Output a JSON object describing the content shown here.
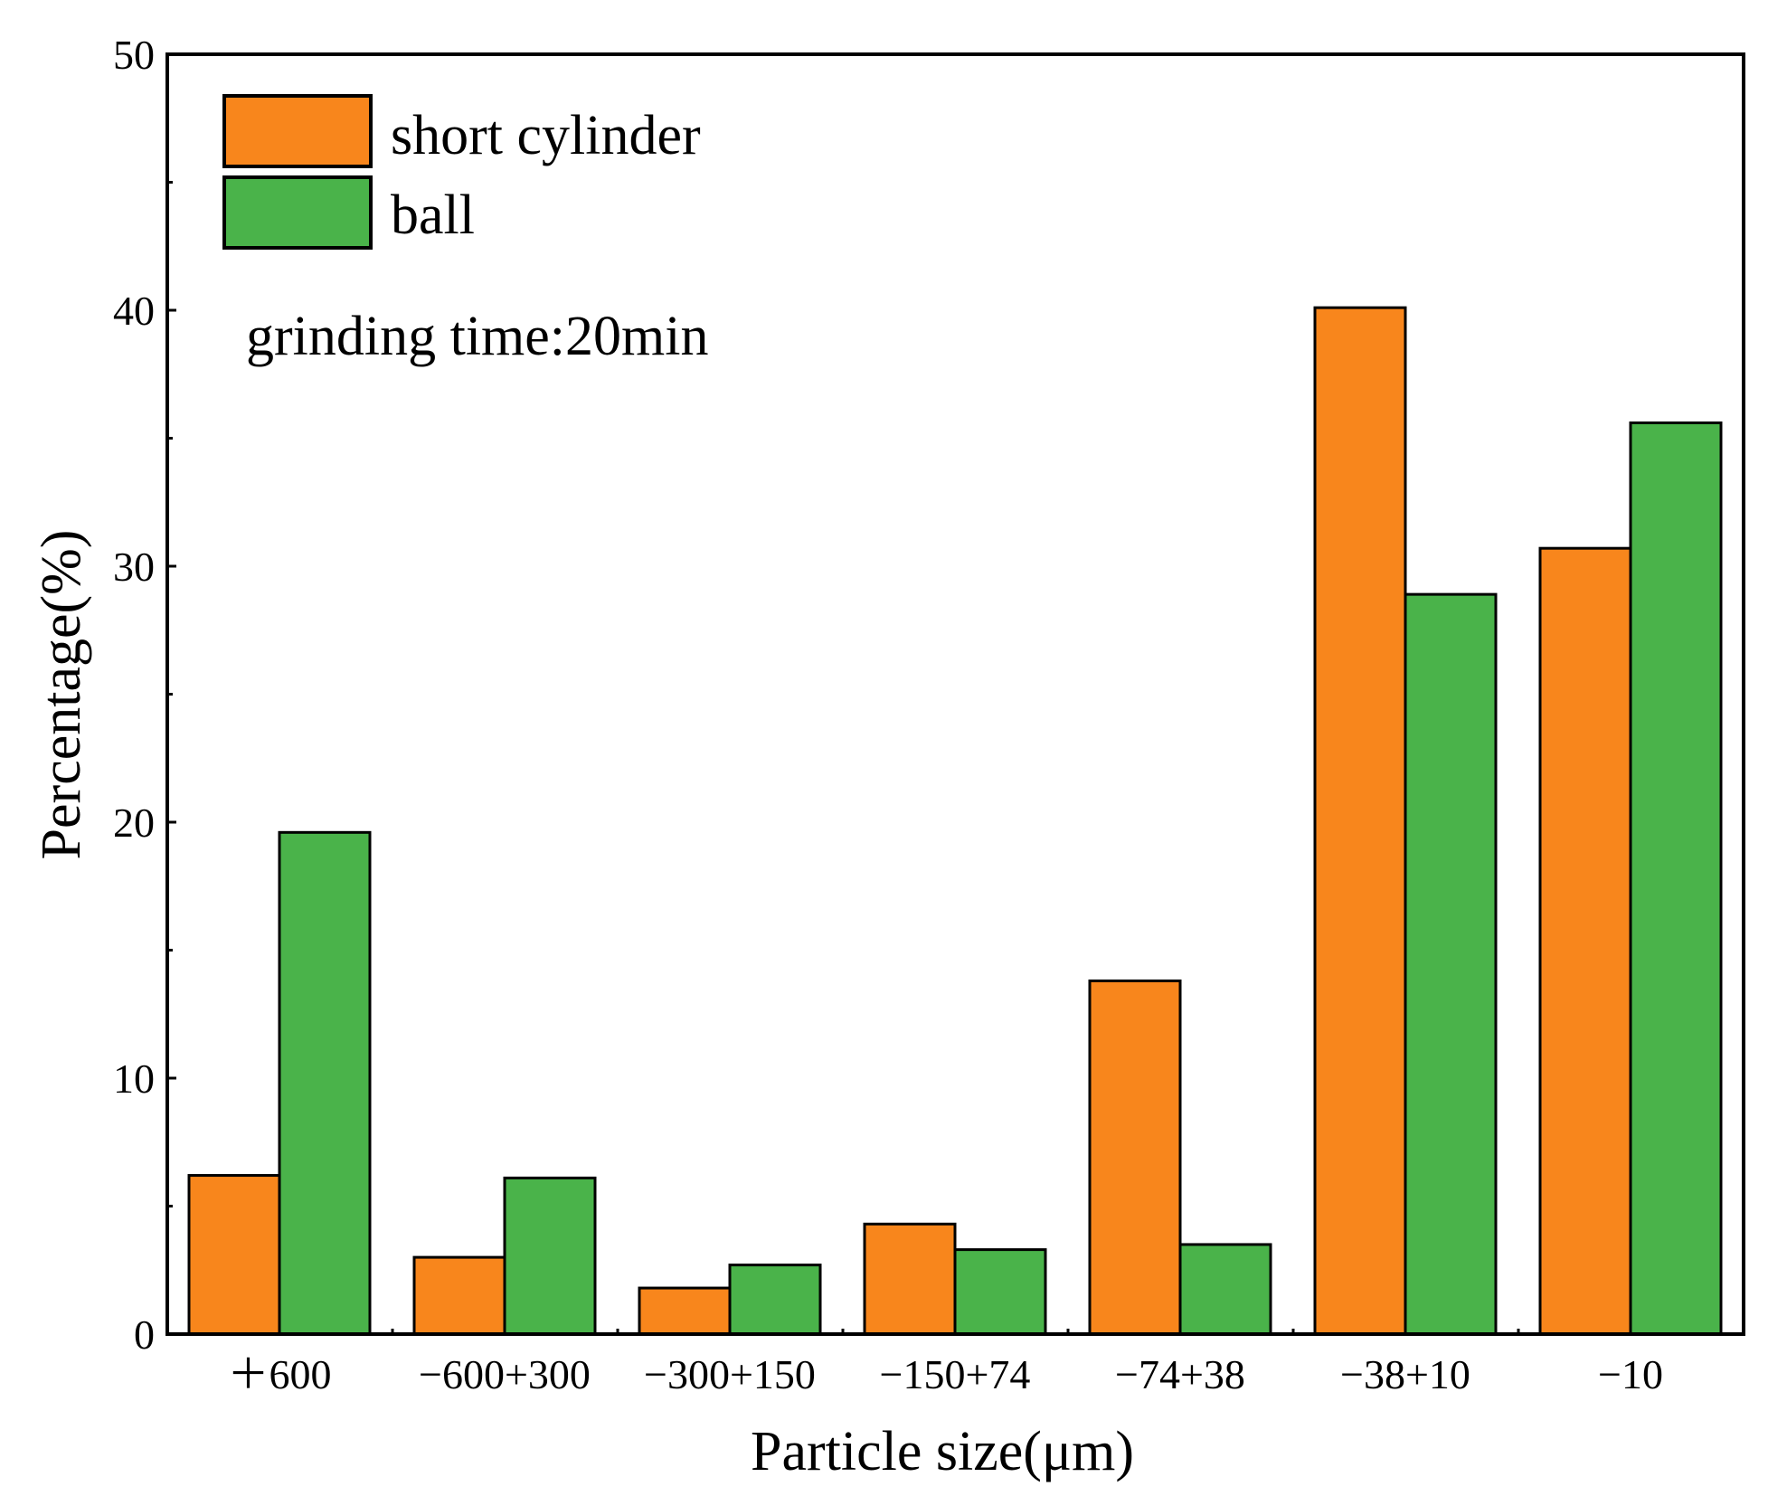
{
  "chart_data": {
    "type": "bar",
    "title": "",
    "xlabel": "Particle size(μm)",
    "ylabel": "Percentage(%)",
    "categories": [
      "＋600",
      "−600+300",
      "−300+150",
      "−150+74",
      "−74+38",
      "−38+10",
      "−10"
    ],
    "series": [
      {
        "name": "short cylinder",
        "color": "#F8861C",
        "values": [
          6.2,
          3.0,
          1.8,
          4.3,
          13.8,
          40.1,
          30.7
        ]
      },
      {
        "name": "ball",
        "color": "#4AB34A",
        "values": [
          19.6,
          6.1,
          2.7,
          3.3,
          3.5,
          28.9,
          35.6
        ]
      }
    ],
    "ylim": [
      0,
      50
    ],
    "yticks": [
      0,
      10,
      20,
      30,
      40,
      50
    ],
    "grid": false,
    "legend_position": "top-left",
    "annotation": "grinding time:20min"
  }
}
